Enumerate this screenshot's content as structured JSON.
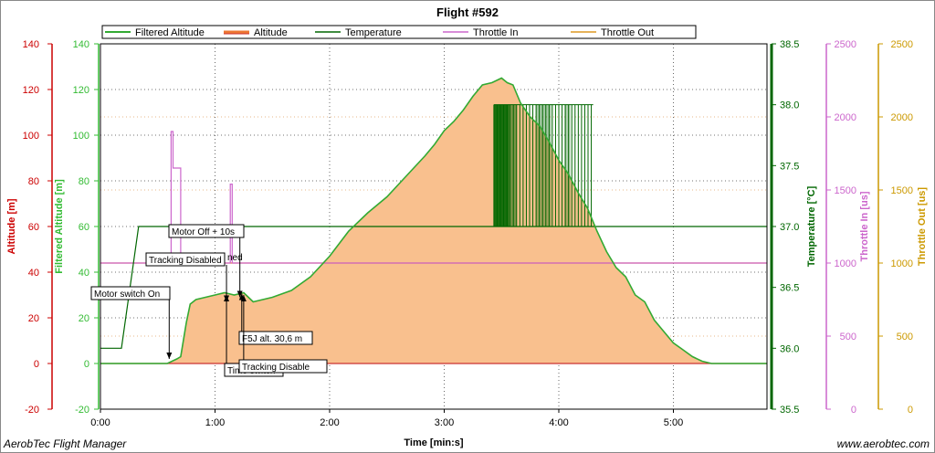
{
  "chart_data": {
    "type": "line",
    "title": "Flight #592",
    "xlabel": "Time [min:s]",
    "x_ticks": [
      "0:00",
      "1:00",
      "2:00",
      "3:00",
      "4:00",
      "5:00"
    ],
    "x_tick_seconds": [
      0,
      60,
      120,
      180,
      240,
      300
    ],
    "xlim_seconds": [
      0,
      349
    ],
    "grid": true,
    "legend_position": "top",
    "axes": [
      {
        "id": "altitude",
        "label": "Altitude [m]",
        "side": "left",
        "color": "#cc0000",
        "lim": [
          -20,
          140
        ],
        "ticks": [
          "-20",
          "0",
          "20",
          "40",
          "60",
          "80",
          "100",
          "120",
          "140"
        ]
      },
      {
        "id": "filtered",
        "label": "Filtered Altitude [m]",
        "side": "left",
        "color": "#33bb33",
        "lim": [
          -20,
          140
        ],
        "ticks": [
          "-20",
          "0",
          "20",
          "40",
          "60",
          "80",
          "100",
          "120",
          "140"
        ]
      },
      {
        "id": "temperature",
        "label": "Temperature [°C]",
        "side": "right",
        "color": "#006600",
        "lim": [
          35.5,
          38.5
        ],
        "ticks": [
          "35.5",
          "36.0",
          "36.5",
          "37.0",
          "37.5",
          "38.0",
          "38.5"
        ]
      },
      {
        "id": "throttle_in",
        "label": "Throttle In [us]",
        "side": "right",
        "color": "#cc66cc",
        "lim": [
          0,
          2500
        ],
        "ticks": [
          "0",
          "500",
          "1000",
          "1500",
          "2000",
          "2500"
        ]
      },
      {
        "id": "throttle_out",
        "label": "Throttle Out [us]",
        "side": "right",
        "color": "#cc9900",
        "lim": [
          0,
          2500
        ],
        "ticks": [
          "0",
          "500",
          "1000",
          "1500",
          "2000",
          "2500"
        ]
      }
    ],
    "series": [
      {
        "name": "Filtered Altitude",
        "axis": "filtered",
        "color": "#33aa33",
        "fill": "#f9c08e",
        "x": [
          0,
          20,
          35,
          40,
          42,
          45,
          47,
          50,
          55,
          60,
          65,
          70,
          75,
          80,
          90,
          100,
          110,
          120,
          130,
          140,
          150,
          160,
          170,
          175,
          180,
          185,
          190,
          195,
          200,
          205,
          210,
          213,
          216,
          220,
          225,
          230,
          235,
          240,
          245,
          250,
          255,
          260,
          265,
          270,
          275,
          280,
          285,
          290,
          295,
          300,
          305,
          310,
          315,
          320,
          330,
          340,
          349
        ],
        "y": [
          0,
          0,
          0,
          2,
          3,
          18,
          26,
          28,
          29,
          30,
          31,
          30,
          31,
          27,
          29,
          32,
          38,
          47,
          58,
          66,
          73,
          82,
          91,
          96,
          102,
          106,
          111,
          117,
          122,
          123,
          125,
          123,
          122,
          114,
          108,
          104,
          97,
          89,
          83,
          75,
          68,
          58,
          49,
          42,
          38,
          30,
          27,
          19,
          14,
          9,
          6,
          3,
          1,
          0,
          0,
          0,
          0
        ]
      },
      {
        "name": "Altitude",
        "axis": "altitude",
        "color": "#cc3333",
        "x": [
          0,
          349
        ],
        "y": [
          0,
          0
        ]
      },
      {
        "name": "Temperature",
        "axis": "temperature",
        "color": "#006600",
        "x": [
          0,
          11,
          11,
          20,
          20,
          349
        ],
        "y": [
          36.0,
          36.0,
          36.0,
          37.0,
          37.0,
          37.0
        ],
        "switching_region_seconds": [
          [
            206,
            258
          ]
        ],
        "switching_levels": [
          37.0,
          38.0
        ]
      },
      {
        "name": "Throttle In",
        "axis": "throttle_in",
        "color": "#cc66cc",
        "x": [
          0,
          37,
          37,
          38,
          38,
          40,
          40,
          42,
          42,
          68,
          68,
          69,
          69,
          349
        ],
        "y": [
          1000,
          1000,
          1900,
          1900,
          1650,
          1650,
          1650,
          1650,
          1000,
          1000,
          1540,
          1540,
          1000,
          1000
        ]
      },
      {
        "name": "Throttle Out",
        "axis": "throttle_out",
        "color": "#ee8822",
        "x": [
          0,
          349
        ],
        "y": [
          1000,
          1000
        ]
      }
    ],
    "annotations": [
      {
        "text": "Motor switch On",
        "x_seconds": 36,
        "y": 2
      },
      {
        "text": "Tracking Disabled",
        "x_seconds": 66,
        "y": 27
      },
      {
        "text": "Motor Off + 10s",
        "x_seconds": 73,
        "y": 29
      },
      {
        "text": "Time switch",
        "x_seconds": 66,
        "y": 30
      },
      {
        "text": "F5J alt. 30,6 m",
        "x_seconds": 74,
        "y": 30.6
      },
      {
        "text": "Tracking Disable",
        "x_seconds": 75,
        "y": 30
      }
    ],
    "annotation_partial": "ned",
    "legend": [
      "Filtered Altitude",
      "Altitude",
      "Temperature",
      "Throttle In",
      "Throttle Out"
    ]
  },
  "footer": {
    "left": "AerobTec Flight Manager",
    "right": "www.aerobtec.com"
  }
}
